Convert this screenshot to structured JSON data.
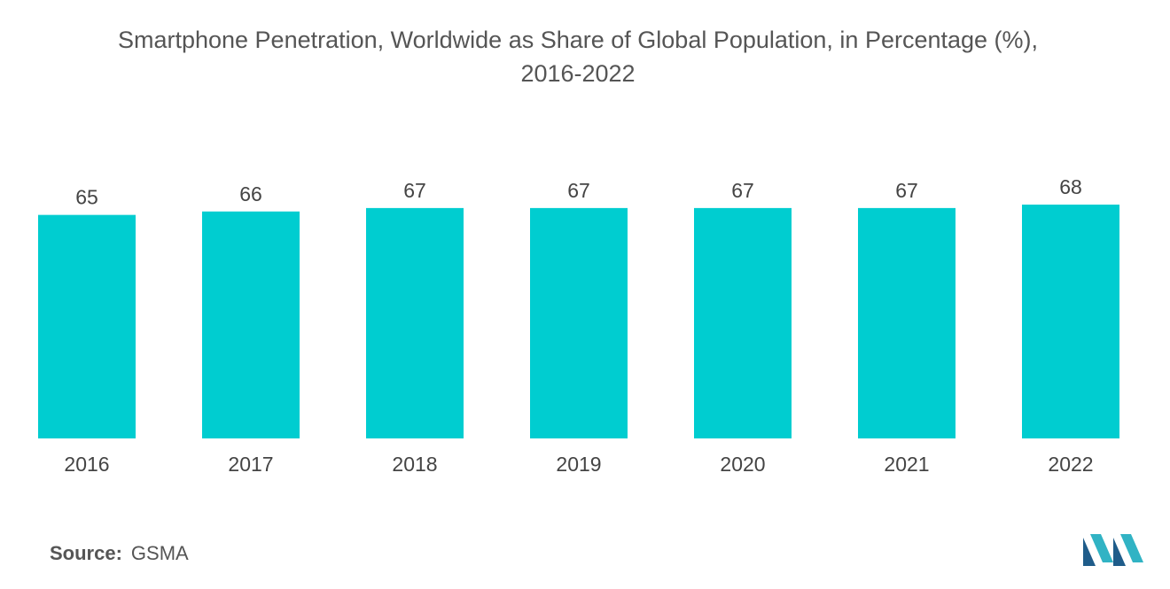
{
  "chart_data": {
    "type": "bar",
    "title": "Smartphone Penetration, Worldwide as Share of Global Population, in Percentage (%),",
    "subtitle": "2016-2022",
    "categories": [
      "2016",
      "2017",
      "2018",
      "2019",
      "2020",
      "2021",
      "2022"
    ],
    "values": [
      65,
      66,
      67,
      67,
      67,
      67,
      68
    ],
    "xlabel": "",
    "ylabel": "",
    "ylim": [
      0,
      68
    ],
    "grid": false,
    "legend": "none",
    "bar_color": "#00CDD0"
  },
  "source": {
    "label": "Source:",
    "value": "GSMA"
  },
  "logo": {
    "icon": "mordor-intelligence-logo-icon",
    "colors": [
      "#1F5C8A",
      "#31B3C4"
    ]
  }
}
